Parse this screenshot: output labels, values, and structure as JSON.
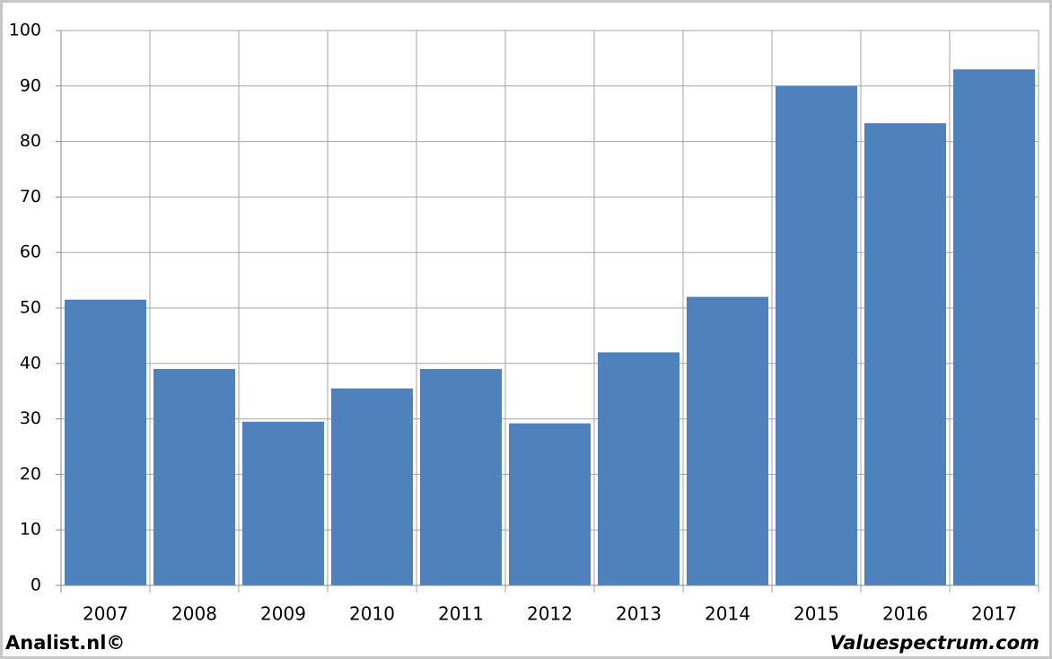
{
  "chart_data": {
    "type": "bar",
    "categories": [
      "2007",
      "2008",
      "2009",
      "2010",
      "2011",
      "2012",
      "2013",
      "2014",
      "2015",
      "2016",
      "2017"
    ],
    "values": [
      51.5,
      39,
      29.5,
      35.5,
      39,
      29.2,
      42,
      52,
      90,
      83.3,
      93
    ],
    "color": "#4f81bd",
    "ylim": [
      0,
      100
    ],
    "yticks": [
      0,
      10,
      20,
      30,
      40,
      50,
      60,
      70,
      80,
      90,
      100
    ],
    "grid": true,
    "source": "Analist.nl©",
    "watermark": "Valuespectrum.com"
  }
}
